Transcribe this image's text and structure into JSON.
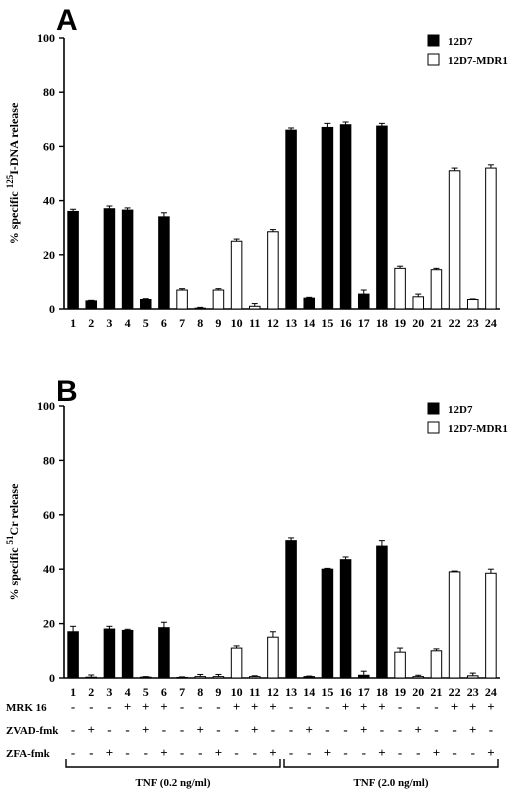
{
  "chart_data": [
    {
      "panel_label": "A",
      "type": "bar",
      "ylabel_prefix": "% specific ",
      "ylabel_sup": "125",
      "ylabel_suffix": "I-DNA release",
      "ylim": [
        0,
        100
      ],
      "yticks": [
        0,
        20,
        40,
        60,
        80,
        100
      ],
      "categories": [
        "1",
        "2",
        "3",
        "4",
        "5",
        "6",
        "7",
        "8",
        "9",
        "10",
        "11",
        "12",
        "13",
        "14",
        "15",
        "16",
        "17",
        "18",
        "19",
        "20",
        "21",
        "22",
        "23",
        "24"
      ],
      "series": [
        {
          "name": "12D7",
          "color": "#000000",
          "indices": [
            1,
            2,
            3,
            4,
            5,
            6,
            13,
            14,
            15,
            16,
            17,
            18
          ]
        },
        {
          "name": "12D7-MDR1",
          "color": "#ffffff",
          "indices": [
            7,
            8,
            9,
            10,
            11,
            12,
            19,
            20,
            21,
            22,
            23,
            24
          ]
        }
      ],
      "values": [
        36,
        3,
        37,
        36.5,
        3.5,
        34,
        7,
        0.3,
        7,
        25,
        1,
        28.5,
        66,
        4,
        67,
        68,
        5.5,
        67.5,
        15,
        4.5,
        14.5,
        51,
        3.5,
        52
      ],
      "errors": [
        0.8,
        0.2,
        1,
        0.8,
        0.3,
        1.5,
        0.5,
        0.3,
        0.5,
        0.8,
        1,
        0.8,
        0.8,
        0.3,
        1.5,
        1,
        1.5,
        1,
        0.8,
        1,
        0.5,
        1,
        0.2,
        1.2
      ],
      "legend_position": "top-right"
    },
    {
      "panel_label": "B",
      "type": "bar",
      "ylabel_prefix": "% specific ",
      "ylabel_sup": "51",
      "ylabel_suffix": "Cr release",
      "ylim": [
        0,
        100
      ],
      "yticks": [
        0,
        20,
        40,
        60,
        80,
        100
      ],
      "categories": [
        "1",
        "2",
        "3",
        "4",
        "5",
        "6",
        "7",
        "8",
        "9",
        "10",
        "11",
        "12",
        "13",
        "14",
        "15",
        "16",
        "17",
        "18",
        "19",
        "20",
        "21",
        "22",
        "23",
        "24"
      ],
      "series": [
        {
          "name": "12D7",
          "color": "#000000",
          "indices": [
            1,
            2,
            3,
            4,
            5,
            6,
            13,
            14,
            15,
            16,
            17,
            18
          ]
        },
        {
          "name": "12D7-MDR1",
          "color": "#ffffff",
          "indices": [
            7,
            8,
            9,
            10,
            11,
            12,
            19,
            20,
            21,
            22,
            23,
            24
          ]
        }
      ],
      "values": [
        17,
        0.3,
        18,
        17.5,
        0.3,
        18.5,
        0.2,
        0.5,
        0.5,
        11,
        0.5,
        15,
        50.5,
        0.5,
        40,
        43.5,
        1,
        48.5,
        9.5,
        0.5,
        10,
        39,
        0.8,
        38.5
      ],
      "errors": [
        2,
        0.8,
        1,
        0.4,
        0.2,
        2,
        0.2,
        0.8,
        0.8,
        0.8,
        0.3,
        2,
        1,
        0.2,
        0.3,
        1,
        1.5,
        2,
        1.5,
        0.5,
        0.7,
        0.3,
        1,
        1.5
      ],
      "legend_position": "top-right"
    }
  ],
  "conditions": {
    "rows": [
      {
        "label": "MRK 16",
        "marks": [
          "-",
          "-",
          "-",
          "+",
          "+",
          "+",
          "-",
          "-",
          "-",
          "+",
          "+",
          "+",
          "-",
          "-",
          "-",
          "+",
          "+",
          "+",
          "-",
          "-",
          "-",
          "+",
          "+",
          "+"
        ]
      },
      {
        "label": "ZVAD-fmk",
        "marks": [
          "-",
          "+",
          "-",
          "-",
          "+",
          "-",
          "-",
          "+",
          "-",
          "-",
          "+",
          "-",
          "-",
          "+",
          "-",
          "-",
          "+",
          "-",
          "-",
          "+",
          "-",
          "-",
          "+",
          "-"
        ]
      },
      {
        "label": "ZFA-fmk",
        "marks": [
          "-",
          "-",
          "+",
          "-",
          "-",
          "+",
          "-",
          "-",
          "+",
          "-",
          "-",
          "+",
          "-",
          "-",
          "+",
          "-",
          "-",
          "+",
          "-",
          "-",
          "+",
          "-",
          "-",
          "+"
        ]
      }
    ],
    "groups": [
      {
        "label": "TNF (0.2 ng/ml)",
        "from": 1,
        "to": 12
      },
      {
        "label": "TNF (2.0 ng/ml)",
        "from": 13,
        "to": 24
      }
    ]
  }
}
